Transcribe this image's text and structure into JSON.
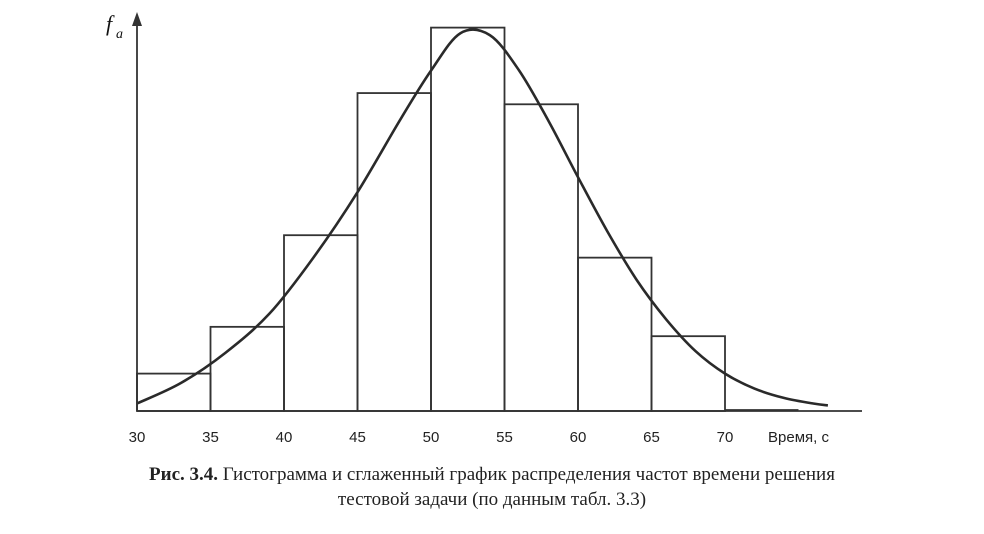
{
  "chart_data": {
    "type": "bar",
    "subtype": "histogram with smoothed frequency curve",
    "ylabel_main": "f",
    "ylabel_sub": "a",
    "xlabel": "Время, с",
    "x_ticks": [
      "30",
      "35",
      "40",
      "45",
      "50",
      "55",
      "60",
      "65",
      "70"
    ],
    "xlim": [
      30,
      80
    ],
    "bins": [
      {
        "from": 30,
        "to": 35,
        "value": 1.0
      },
      {
        "from": 35,
        "to": 40,
        "value": 2.25
      },
      {
        "from": 40,
        "to": 45,
        "value": 4.7
      },
      {
        "from": 45,
        "to": 50,
        "value": 8.5
      },
      {
        "from": 50,
        "to": 55,
        "value": 10.25
      },
      {
        "from": 55,
        "to": 60,
        "value": 8.2
      },
      {
        "from": 60,
        "to": 65,
        "value": 4.1
      },
      {
        "from": 65,
        "to": 70,
        "value": 2.0
      },
      {
        "from": 70,
        "to": 75,
        "value": 0.0
      }
    ],
    "curve": {
      "x": [
        30,
        33,
        36,
        39,
        42,
        45,
        48,
        50,
        52,
        54,
        56,
        58,
        60,
        62,
        64,
        66,
        68,
        70,
        72,
        74,
        76,
        77
      ],
      "y": [
        0.2,
        0.75,
        1.55,
        2.6,
        4.1,
        5.85,
        7.85,
        9.1,
        10.1,
        10.05,
        9.1,
        7.75,
        6.25,
        4.8,
        3.5,
        2.45,
        1.6,
        1.0,
        0.6,
        0.35,
        0.2,
        0.15
      ]
    },
    "ylim": [
      0,
      10.4
    ],
    "grid": false,
    "legend": "none"
  },
  "caption": {
    "figure_label": "Рис. 3.4.",
    "line1": "Гистограмма и сглаженный график распределения частот времени решения",
    "line2": "тестовой задачи (по данным табл. 3.3)"
  }
}
